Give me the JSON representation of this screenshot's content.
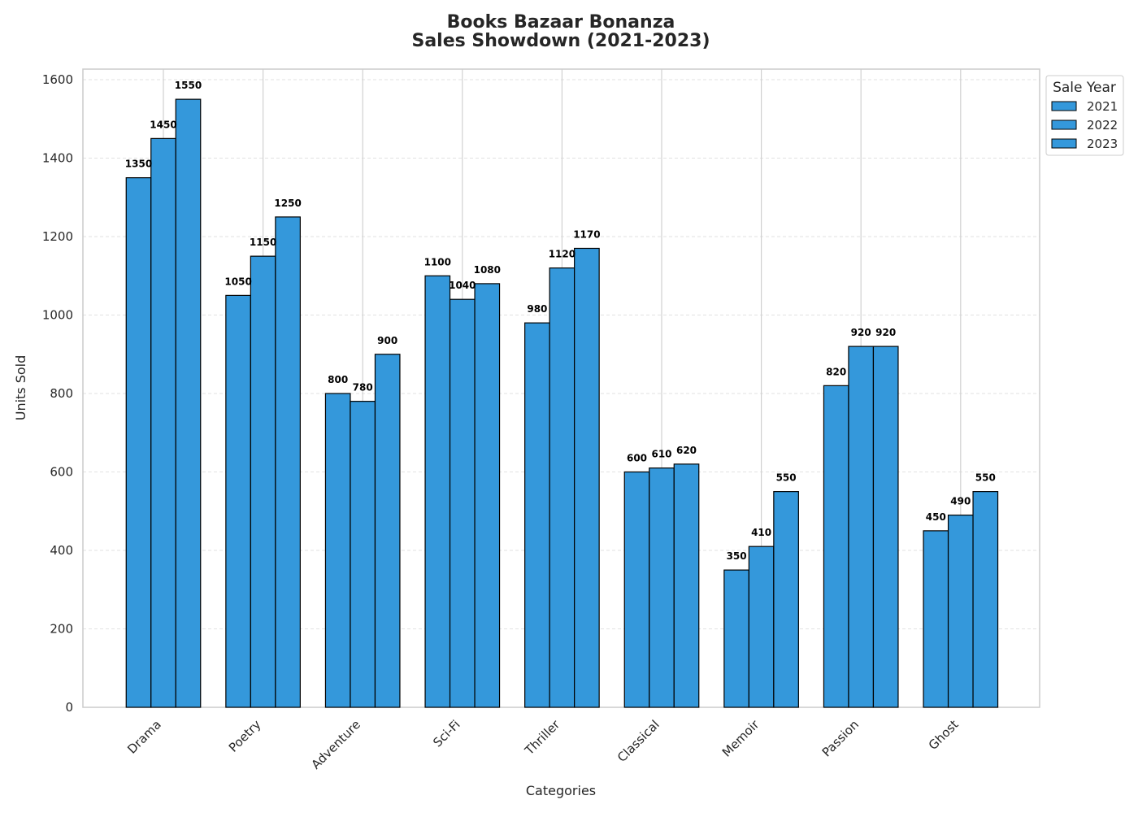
{
  "chart_data": {
    "type": "bar",
    "title_line1": "Books Bazaar Bonanza",
    "title_line2": "Sales Showdown (2021-2023)",
    "xlabel": "Categories",
    "ylabel": "Units Sold",
    "categories": [
      "Drama",
      "Poetry",
      "Adventure",
      "Sci-Fi",
      "Thriller",
      "Classical",
      "Memoir",
      "Passion",
      "Ghost"
    ],
    "series": [
      {
        "name": "2021",
        "color": "#3498db",
        "values": [
          1350,
          1050,
          800,
          1100,
          980,
          600,
          350,
          820,
          450
        ]
      },
      {
        "name": "2022",
        "color": "#3498db",
        "values": [
          1450,
          1150,
          780,
          1040,
          1120,
          610,
          410,
          920,
          490
        ]
      },
      {
        "name": "2023",
        "color": "#3498db",
        "values": [
          1550,
          1250,
          900,
          1080,
          1170,
          620,
          550,
          920,
          550
        ]
      }
    ],
    "ylim": [
      0,
      1630
    ],
    "yticks": [
      0,
      200,
      400,
      600,
      800,
      1000,
      1200,
      1400,
      1600
    ],
    "legend_title": "Sale Year",
    "legend_position": "outside-top-right",
    "grid": true,
    "bar_edge_color": "#000000"
  }
}
